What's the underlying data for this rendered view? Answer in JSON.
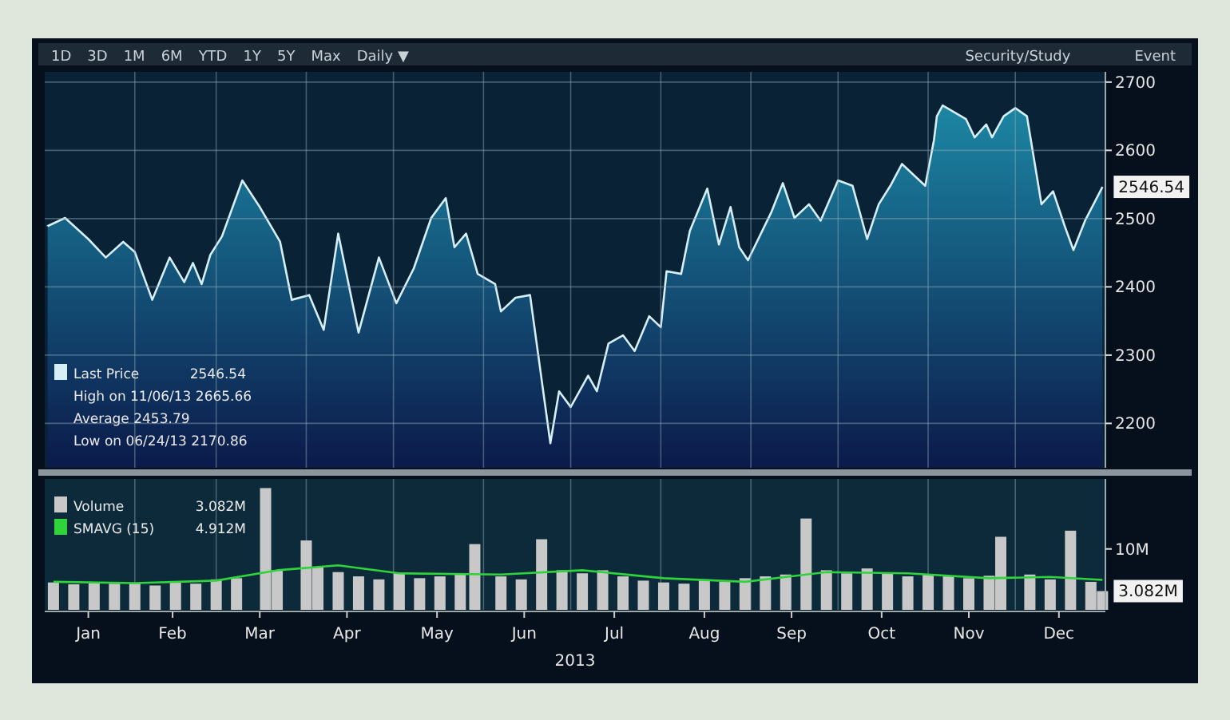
{
  "chart_data": [
    {
      "type": "area",
      "x": [
        "2013-01-02",
        "2013-01-08",
        "2013-01-16",
        "2013-01-22",
        "2013-01-28",
        "2013-02-01",
        "2013-02-07",
        "2013-02-13",
        "2013-02-18",
        "2013-02-21",
        "2013-02-24",
        "2013-02-27",
        "2013-03-03",
        "2013-03-10",
        "2013-03-16",
        "2013-03-23",
        "2013-03-27",
        "2013-04-02",
        "2013-04-07",
        "2013-04-12",
        "2013-04-19",
        "2013-04-26",
        "2013-05-02",
        "2013-05-08",
        "2013-05-14",
        "2013-05-19",
        "2013-05-22",
        "2013-05-26",
        "2013-05-30",
        "2013-06-05",
        "2013-06-07",
        "2013-06-12",
        "2013-06-17",
        "2013-06-24",
        "2013-06-27",
        "2013-07-01",
        "2013-07-07",
        "2013-07-10",
        "2013-07-14",
        "2013-07-19",
        "2013-07-23",
        "2013-07-28",
        "2013-08-01",
        "2013-08-03",
        "2013-08-08",
        "2013-08-11",
        "2013-08-17",
        "2013-08-21",
        "2013-08-25",
        "2013-08-28",
        "2013-08-31",
        "2013-09-08",
        "2013-09-12",
        "2013-09-16",
        "2013-09-21",
        "2013-09-25",
        "2013-10-01",
        "2013-10-06",
        "2013-10-11",
        "2013-10-15",
        "2013-10-19",
        "2013-10-23",
        "2013-10-31",
        "2013-11-03",
        "2013-11-04",
        "2013-11-06",
        "2013-11-14",
        "2013-11-17",
        "2013-11-21",
        "2013-11-23",
        "2013-11-27",
        "2013-12-01",
        "2013-12-05",
        "2013-12-10",
        "2013-12-14",
        "2013-12-18",
        "2013-12-21",
        "2013-12-25",
        "2013-12-31"
      ],
      "series": [
        {
          "name": "Last Price",
          "color": "#d6eef6",
          "values": [
            2489,
            2501,
            2470,
            2443,
            2466,
            2451,
            2381,
            2443,
            2407,
            2435,
            2404,
            2447,
            2474,
            2556,
            2517,
            2466,
            2381,
            2388,
            2337,
            2478,
            2333,
            2443,
            2376,
            2427,
            2501,
            2530,
            2458,
            2478,
            2419,
            2404,
            2364,
            2384,
            2388,
            2170.86,
            2247,
            2224,
            2270,
            2247,
            2317,
            2329,
            2306,
            2357,
            2341,
            2423,
            2419,
            2482,
            2544,
            2462,
            2517,
            2458,
            2439,
            2509,
            2552,
            2501,
            2521,
            2497,
            2556,
            2548,
            2470,
            2521,
            2548,
            2580,
            2548,
            2615,
            2650,
            2665.66,
            2646,
            2619,
            2638,
            2619,
            2650,
            2662,
            2650,
            2521,
            2540,
            2489,
            2454,
            2497,
            2546.54
          ]
        }
      ],
      "xlim": [
        "2013-01-01",
        "2014-01-01"
      ],
      "xticks": [
        {
          "value": "2013-02-01",
          "label": null
        },
        {
          "value": "2013-03-01",
          "label": null
        },
        {
          "value": "2013-04-01",
          "label": null
        },
        {
          "value": "2013-05-01",
          "label": null
        },
        {
          "value": "2013-06-01",
          "label": null
        },
        {
          "value": "2013-07-01",
          "label": null
        },
        {
          "value": "2013-08-01",
          "label": null
        },
        {
          "value": "2013-09-01",
          "label": null
        },
        {
          "value": "2013-10-01",
          "label": null
        },
        {
          "value": "2013-11-01",
          "label": null
        },
        {
          "value": "2013-12-01",
          "label": null
        }
      ],
      "ylim": [
        2135,
        2715
      ],
      "yticks": [
        2200,
        2300,
        2400,
        2500,
        2600,
        2700
      ],
      "grid": true,
      "tick_labels": "y",
      "legend": "bottom left",
      "annotations": [
        "1D",
        "3D",
        "1M",
        "6M",
        "YTD",
        "1Y",
        "5Y",
        "Max",
        "Daily ▼",
        "Security/Study",
        "Event",
        {
          "text": "2546.54",
          "x": "2013-12-31",
          "y": 2546.54
        },
        "High on 11/06/13 2665.66",
        "Average 2453.79",
        "Low on 06/24/13 2170.86"
      ]
    },
    {
      "type": "bar",
      "x": [
        "2013-01-04",
        "2013-01-11",
        "2013-01-18",
        "2013-01-25",
        "2013-02-01",
        "2013-02-08",
        "2013-02-15",
        "2013-02-22",
        "2013-03-01",
        "2013-03-08",
        "2013-03-18",
        "2013-03-22",
        "2013-04-01",
        "2013-04-05",
        "2013-04-12",
        "2013-04-19",
        "2013-04-26",
        "2013-05-03",
        "2013-05-10",
        "2013-05-17",
        "2013-05-24",
        "2013-05-29",
        "2013-06-07",
        "2013-06-14",
        "2013-06-21",
        "2013-06-28",
        "2013-07-05",
        "2013-07-12",
        "2013-07-19",
        "2013-07-26",
        "2013-08-02",
        "2013-08-09",
        "2013-08-16",
        "2013-08-23",
        "2013-08-30",
        "2013-09-06",
        "2013-09-13",
        "2013-09-20",
        "2013-09-27",
        "2013-10-04",
        "2013-10-11",
        "2013-10-18",
        "2013-10-25",
        "2013-11-01",
        "2013-11-08",
        "2013-11-15",
        "2013-11-22",
        "2013-11-26",
        "2013-12-06",
        "2013-12-13",
        "2013-12-20",
        "2013-12-27",
        "2013-12-31"
      ],
      "series": [
        {
          "name": "Volume",
          "color": "#c8c8c8",
          "values": [
            4.5,
            4.2,
            4.4,
            4.3,
            4.4,
            4.0,
            4.6,
            4.3,
            5.0,
            5.2,
            20,
            6.5,
            11.4,
            7.0,
            6.2,
            5.5,
            5.0,
            6.0,
            5.2,
            5.5,
            5.8,
            10.8,
            5.5,
            5.0,
            11.6,
            6.5,
            6.0,
            6.5,
            5.5,
            4.8,
            4.5,
            4.3,
            5.0,
            4.6,
            5.2,
            5.5,
            5.8,
            15,
            6.5,
            6.0,
            6.8,
            6.0,
            5.5,
            5.8,
            5.5,
            5.2,
            5.6,
            12,
            5.8,
            5.0,
            13,
            4.6,
            3.082
          ]
        },
        {
          "name": "SMAVG (15)",
          "type": "line",
          "color": "#2fd33a",
          "x": [
            "2013-01-04",
            "2013-02-01",
            "2013-03-01",
            "2013-03-22",
            "2013-04-12",
            "2013-05-03",
            "2013-06-07",
            "2013-07-05",
            "2013-08-02",
            "2013-08-30",
            "2013-09-27",
            "2013-10-25",
            "2013-11-22",
            "2013-12-13",
            "2013-12-31"
          ],
          "values": [
            4.6,
            4.4,
            4.8,
            6.5,
            7.3,
            6.0,
            5.8,
            6.5,
            5.2,
            4.6,
            6.2,
            6.0,
            5.2,
            5.4,
            4.912
          ]
        }
      ],
      "xlim": [
        "2013-01-01",
        "2014-01-01"
      ],
      "xticks": [
        {
          "value": "2013-01-16",
          "label": "Jan"
        },
        {
          "value": "2013-02-14",
          "label": "Feb"
        },
        {
          "value": "2013-03-16",
          "label": "Mar"
        },
        {
          "value": "2013-04-15",
          "label": "Apr"
        },
        {
          "value": "2013-05-16",
          "label": "May"
        },
        {
          "value": "2013-06-15",
          "label": "Jun"
        },
        {
          "value": "2013-07-16",
          "label": "Jul"
        },
        {
          "value": "2013-08-16",
          "label": "Aug"
        },
        {
          "value": "2013-09-15",
          "label": "Sep"
        },
        {
          "value": "2013-10-16",
          "label": "Oct"
        },
        {
          "value": "2013-11-15",
          "label": "Nov"
        },
        {
          "value": "2013-12-16",
          "label": "Dec"
        },
        {
          "value": "2013-02-01",
          "label": null
        },
        {
          "value": "2013-03-01",
          "label": null
        },
        {
          "value": "2013-04-01",
          "label": null
        },
        {
          "value": "2013-05-01",
          "label": null
        },
        {
          "value": "2013-06-01",
          "label": null
        },
        {
          "value": "2013-07-01",
          "label": null
        },
        {
          "value": "2013-08-01",
          "label": null
        },
        {
          "value": "2013-09-01",
          "label": null
        },
        {
          "value": "2013-10-01",
          "label": null
        },
        {
          "value": "2013-11-01",
          "label": null
        },
        {
          "value": "2013-12-01",
          "label": null
        }
      ],
      "xlabel": "2013",
      "ylim": [
        0,
        21.5
      ],
      "yticks": [
        {
          "value": 10,
          "label": "10M"
        }
      ],
      "grid": "x",
      "legend": "top left",
      "annotations": [
        {
          "text": "3.082M",
          "x": "2013-12-31",
          "y": 3.082
        },
        "4.912M"
      ]
    }
  ]
}
